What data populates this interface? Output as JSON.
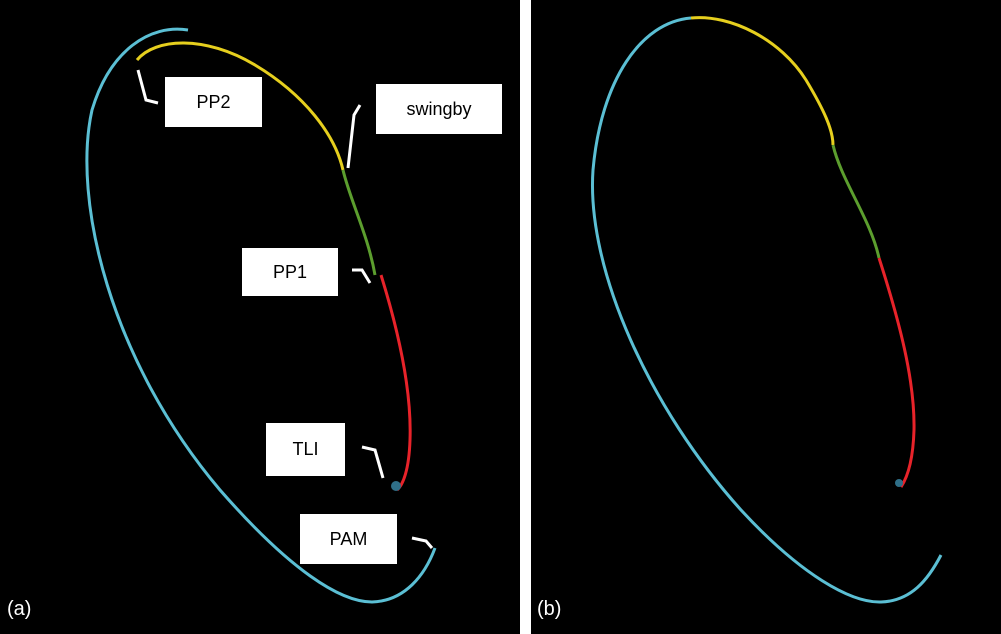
{
  "colors": {
    "background": "#000000",
    "coast": "#5bbfd4",
    "transfer_1": "#e8232a",
    "transfer_2": "#5c9e2e",
    "transfer_3": "#e6cf1e",
    "earth": "#2f6f88",
    "leader": "#ffffff"
  },
  "panels": {
    "a": {
      "tag": "(a)"
    },
    "b": {
      "tag": "(b)"
    }
  },
  "labels": {
    "pp2": "PP2",
    "swingby": "swingby",
    "pp1": "PP1",
    "tli": "TLI",
    "pam": "PAM"
  }
}
